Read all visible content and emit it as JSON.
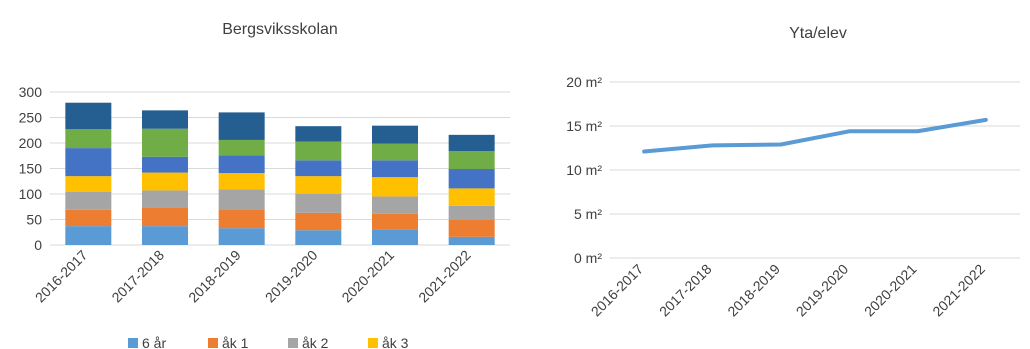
{
  "chart_data": [
    {
      "type": "bar",
      "stacked": true,
      "title": "Bergsviksskolan",
      "categories": [
        "2016-2017",
        "2017-2018",
        "2018-2019",
        "2019-2020",
        "2020-2021",
        "2021-2022"
      ],
      "series": [
        {
          "name": "6 år",
          "color": "#5B9BD5",
          "values": [
            37,
            37,
            33,
            29,
            31,
            16
          ]
        },
        {
          "name": "åk 1",
          "color": "#ED7D31",
          "values": [
            32,
            37,
            37,
            34,
            30,
            33
          ]
        },
        {
          "name": "åk 2",
          "color": "#A5A5A5",
          "values": [
            35,
            33,
            39,
            37,
            34,
            28
          ]
        },
        {
          "name": "åk 3",
          "color": "#FFC000",
          "values": [
            31,
            35,
            32,
            35,
            38,
            34
          ]
        },
        {
          "name": "",
          "color": "#4472C4",
          "values": [
            55,
            31,
            35,
            31,
            33,
            38
          ]
        },
        {
          "name": "",
          "color": "#70AD47",
          "values": [
            37,
            55,
            30,
            37,
            33,
            35
          ]
        },
        {
          "name": "",
          "color": "#255E91",
          "values": [
            52,
            36,
            54,
            30,
            35,
            32
          ]
        }
      ],
      "y_ticks": [
        "0",
        "50",
        "100",
        "150",
        "200",
        "250",
        "300"
      ],
      "ylim": [
        0,
        300
      ],
      "grid": true,
      "legend_position": "bottom"
    },
    {
      "type": "line",
      "title": "Yta/elev",
      "categories": [
        "2016-2017",
        "2017-2018",
        "2018-2019",
        "2019-2020",
        "2020-2021",
        "2021-2022"
      ],
      "series": [
        {
          "name": "",
          "color": "#5B9BD5",
          "values": [
            12.1,
            12.8,
            12.9,
            14.4,
            14.4,
            15.7
          ]
        }
      ],
      "y_ticks": [
        "0 m²",
        "5 m²",
        "10 m²",
        "15 m²",
        "20 m²"
      ],
      "ylim": [
        0,
        20
      ],
      "grid": true
    }
  ]
}
